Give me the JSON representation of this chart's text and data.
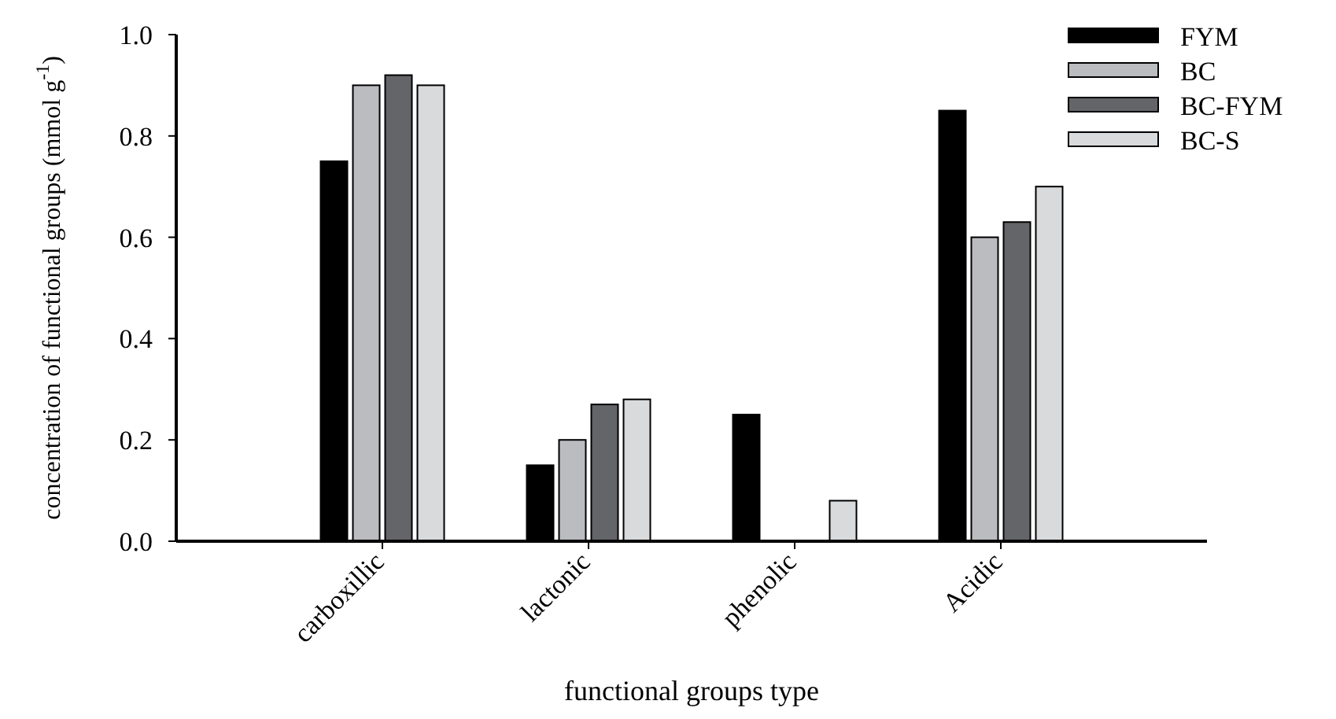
{
  "chart_data": {
    "type": "bar",
    "xlabel": "functional groups type",
    "ylabel": "concentration of functional groups (mmol g$^{-1}$)",
    "categories": [
      "carboxillic",
      "lactonic",
      "phenolic",
      "Acidic"
    ],
    "series": [
      {
        "name": "FYM",
        "color": "#000000",
        "values": [
          0.75,
          0.15,
          0.25,
          0.85
        ]
      },
      {
        "name": "BC",
        "color": "#bbbcc0",
        "values": [
          0.9,
          0.2,
          null,
          0.6
        ]
      },
      {
        "name": "BC-FYM",
        "color": "#646569",
        "values": [
          0.92,
          0.27,
          null,
          0.63
        ]
      },
      {
        "name": "BC-S",
        "color": "#d9dadc",
        "values": [
          0.9,
          0.28,
          0.08,
          0.7
        ]
      }
    ],
    "ylim": [
      0,
      1
    ],
    "yticks": [
      {
        "value": 0,
        "label": "0.0"
      },
      0.2,
      0.4,
      0.6,
      0.8,
      {
        "value": 1,
        "label": "1.0"
      }
    ],
    "grid": false,
    "legend": "top right"
  }
}
